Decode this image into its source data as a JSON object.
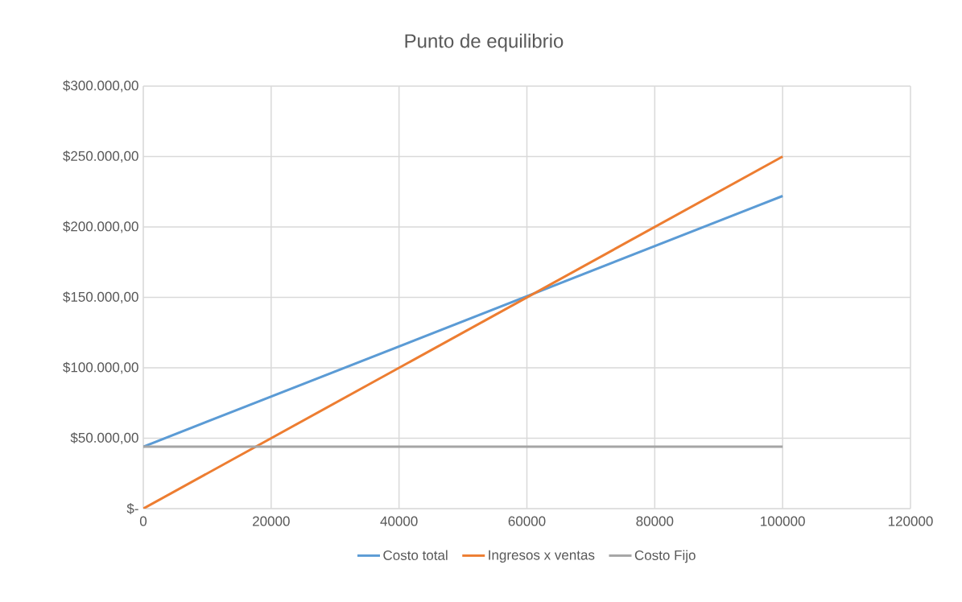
{
  "chart_data": {
    "type": "line",
    "title": "Punto de equilibrio",
    "x": [
      0,
      100000
    ],
    "series": [
      {
        "name": "Costo total",
        "color": "#5b9bd5",
        "values": [
          44000,
          222000
        ]
      },
      {
        "name": "Ingresos x ventas",
        "color": "#ed7d31",
        "values": [
          0,
          250000
        ]
      },
      {
        "name": "Costo Fijo",
        "color": "#a5a5a5",
        "values": [
          44000,
          44000
        ]
      }
    ],
    "xlim": [
      0,
      120000
    ],
    "xticks": [
      0,
      20000,
      40000,
      60000,
      80000,
      100000,
      120000
    ],
    "ylim": [
      0,
      300000
    ],
    "yticks": [
      {
        "value": 0,
        "label": "$-"
      },
      {
        "value": 50000,
        "label": "$50.000,00"
      },
      {
        "value": 100000,
        "label": "$100.000,00"
      },
      {
        "value": 150000,
        "label": "$150.000,00"
      },
      {
        "value": 200000,
        "label": "$200.000,00"
      },
      {
        "value": 250000,
        "label": "$250.000,00"
      },
      {
        "value": 300000,
        "label": "$300.000,00"
      }
    ],
    "grid": true,
    "legend": "bottom"
  }
}
